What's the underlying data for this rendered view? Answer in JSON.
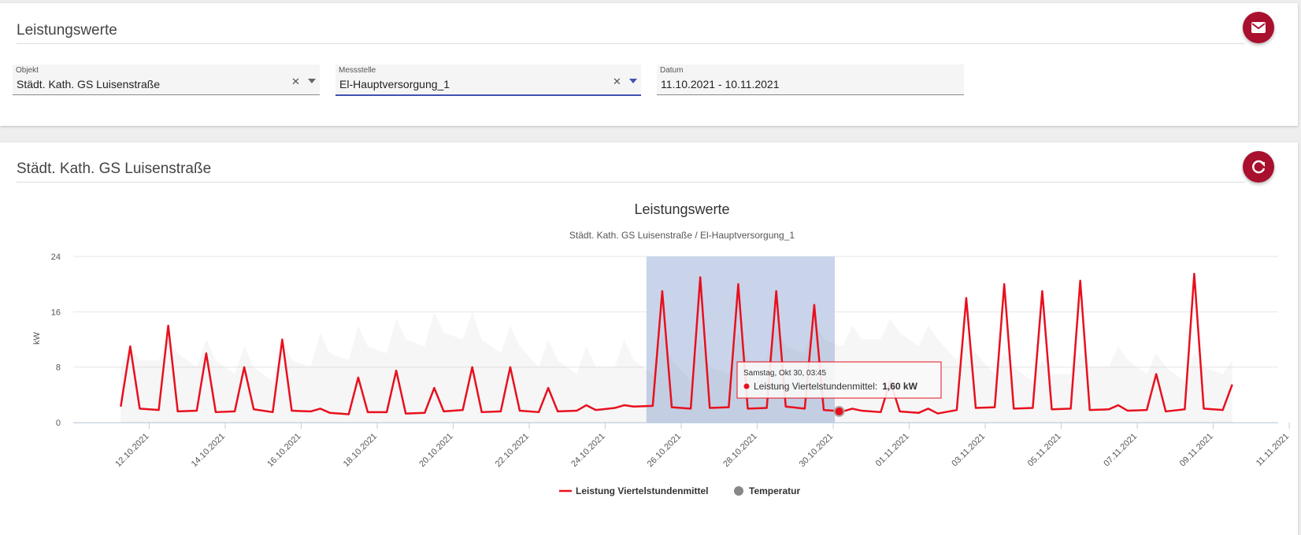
{
  "header": {
    "title": "Leistungswerte"
  },
  "form": {
    "fields": [
      {
        "label": "Objekt",
        "value": "Städt. Kath. GS Luisenstraße"
      },
      {
        "label": "Messstelle",
        "value": "El-Hauptversorgung_1"
      },
      {
        "label": "Datum",
        "value": "11.10.2021 - 10.11.2021"
      }
    ]
  },
  "section": {
    "title": "Städt. Kath. GS Luisenstraße"
  },
  "chart_data": {
    "type": "line",
    "title": "Leistungswerte",
    "subtitle": "Städt. Kath. GS Luisenstraße / El-Hauptversorgung_1",
    "y_label": "kW",
    "xlim": [
      "10.10.2021 00:00",
      "10.11.2021 17:00"
    ],
    "xticks": [
      "12.10.2021",
      "14.10.2021",
      "16.10.2021",
      "18.10.2021",
      "20.10.2021",
      "22.10.2021",
      "24.10.2021",
      "26.10.2021",
      "28.10.2021",
      "30.10.2021",
      "01.11.2021",
      "03.11.2021",
      "05.11.2021",
      "07.11.2021",
      "09.11.2021",
      "11.11.2021"
    ],
    "ylim": [
      0,
      24
    ],
    "yticks": [
      0,
      8,
      16,
      24
    ],
    "grid": true,
    "x": [
      "11.10.2021 06:00",
      "11.10.2021 12:00",
      "11.10.2021 18:00",
      "12.10.2021 06:00",
      "12.10.2021 12:00",
      "12.10.2021 18:00",
      "13.10.2021 06:00",
      "13.10.2021 12:00",
      "13.10.2021 18:00",
      "14.10.2021 06:00",
      "14.10.2021 12:00",
      "14.10.2021 18:00",
      "15.10.2021 06:00",
      "15.10.2021 12:00",
      "15.10.2021 18:00",
      "16.10.2021 06:00",
      "16.10.2021 12:00",
      "16.10.2021 18:00",
      "17.10.2021 06:00",
      "17.10.2021 12:00",
      "17.10.2021 18:00",
      "18.10.2021 06:00",
      "18.10.2021 12:00",
      "18.10.2021 18:00",
      "19.10.2021 06:00",
      "19.10.2021 12:00",
      "19.10.2021 18:00",
      "20.10.2021 06:00",
      "20.10.2021 12:00",
      "20.10.2021 18:00",
      "21.10.2021 06:00",
      "21.10.2021 12:00",
      "21.10.2021 18:00",
      "22.10.2021 06:00",
      "22.10.2021 12:00",
      "22.10.2021 18:00",
      "23.10.2021 06:00",
      "23.10.2021 12:00",
      "23.10.2021 18:00",
      "24.10.2021 06:00",
      "24.10.2021 12:00",
      "24.10.2021 18:00",
      "25.10.2021 06:00",
      "25.10.2021 12:00",
      "25.10.2021 18:00",
      "26.10.2021 06:00",
      "26.10.2021 12:00",
      "26.10.2021 18:00",
      "27.10.2021 06:00",
      "27.10.2021 12:00",
      "27.10.2021 18:00",
      "28.10.2021 06:00",
      "28.10.2021 12:00",
      "28.10.2021 18:00",
      "29.10.2021 06:00",
      "29.10.2021 12:00",
      "29.10.2021 18:00",
      "30.10.2021 06:00",
      "30.10.2021 12:00",
      "30.10.2021 18:00",
      "31.10.2021 06:00",
      "31.10.2021 12:00",
      "31.10.2021 18:00",
      "01.11.2021 06:00",
      "01.11.2021 12:00",
      "01.11.2021 18:00",
      "02.11.2021 06:00",
      "02.11.2021 12:00",
      "02.11.2021 18:00",
      "03.11.2021 06:00",
      "03.11.2021 12:00",
      "03.11.2021 18:00",
      "04.11.2021 06:00",
      "04.11.2021 12:00",
      "04.11.2021 18:00",
      "05.11.2021 06:00",
      "05.11.2021 12:00",
      "05.11.2021 18:00",
      "06.11.2021 06:00",
      "06.11.2021 12:00",
      "06.11.2021 18:00",
      "07.11.2021 06:00",
      "07.11.2021 12:00",
      "07.11.2021 18:00",
      "08.11.2021 06:00",
      "08.11.2021 12:00",
      "08.11.2021 18:00",
      "09.11.2021 06:00",
      "09.11.2021 12:00"
    ],
    "series": [
      {
        "name": "Leistung Viertelstundenmittel",
        "color": "#e8101e",
        "values": [
          2.3,
          11,
          2.0,
          1.8,
          14,
          1.6,
          1.7,
          10,
          1.5,
          1.6,
          8,
          1.9,
          1.5,
          12,
          1.7,
          1.6,
          2,
          1.4,
          1.2,
          6.5,
          1.5,
          1.5,
          7.5,
          1.3,
          1.4,
          5,
          1.6,
          1.8,
          8,
          1.5,
          1.6,
          8,
          1.7,
          1.5,
          5,
          1.6,
          1.7,
          2.5,
          1.8,
          2.1,
          2.5,
          2.3,
          2.4,
          19,
          2.2,
          2.0,
          21,
          2.1,
          2.2,
          20,
          2.0,
          2.1,
          19,
          2.3,
          2.0,
          17,
          1.8,
          1.6,
          2,
          1.7,
          1.5,
          6,
          1.6,
          1.4,
          2,
          1.3,
          1.8,
          18,
          2.1,
          2.2,
          20,
          2.0,
          2.1,
          19,
          1.9,
          2.0,
          20.5,
          1.8,
          1.9,
          2.5,
          1.7,
          1.8,
          7,
          1.6,
          1.9,
          21.5,
          2.0,
          1.8,
          5.5
        ]
      },
      {
        "name": "Temperatur",
        "color": "#888888",
        "values": [
          8,
          11,
          9,
          9,
          12,
          10,
          8,
          12,
          9,
          7,
          11,
          8,
          6,
          12,
          9,
          8,
          13,
          10,
          9,
          14,
          11,
          10,
          15,
          12,
          11,
          16,
          13,
          12,
          16,
          12,
          10,
          14,
          11,
          8,
          12,
          9,
          7,
          11,
          8,
          8,
          12,
          9,
          7,
          13,
          9,
          6,
          12,
          8,
          7,
          13,
          9,
          9,
          14,
          11,
          10,
          15,
          12,
          11,
          14,
          12,
          12,
          15,
          13,
          11,
          14,
          12,
          9,
          12,
          10,
          7,
          10,
          8,
          6,
          9,
          7,
          7,
          10,
          8,
          8,
          11,
          9,
          7,
          10,
          8,
          6,
          10,
          8,
          7,
          9
        ]
      }
    ],
    "selection": {
      "from": "25.10.2021 02:00",
      "to": "30.10.2021 01:00"
    },
    "tooltip": {
      "header": "Samstag, Okt 30, 03:45",
      "label": "Leistung Viertelstundenmittel:",
      "x": "30.10.2021 03:45",
      "value": 1.6,
      "value_label": "1,60 kW"
    }
  }
}
